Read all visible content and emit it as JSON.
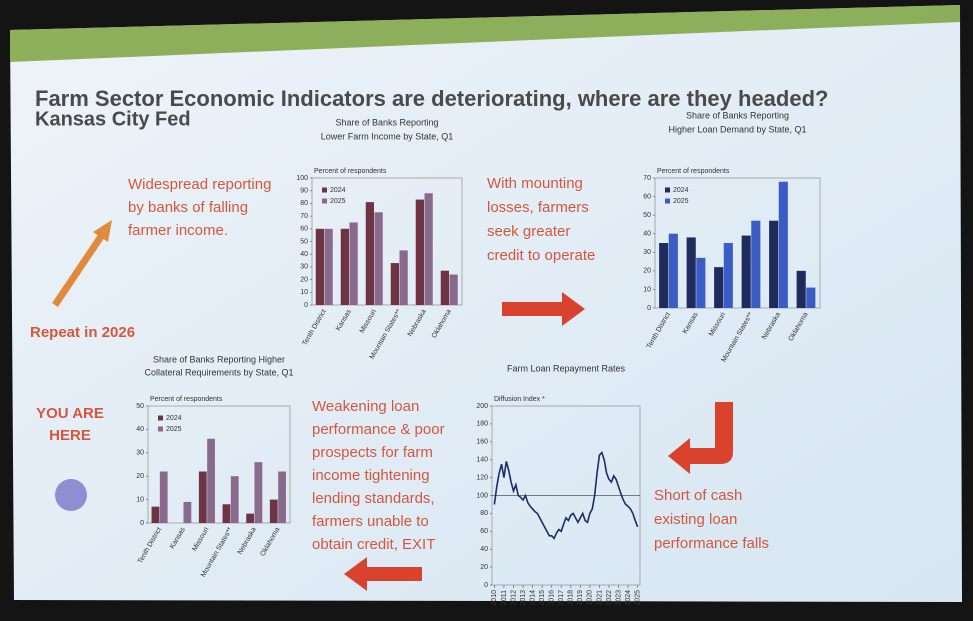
{
  "slide": {
    "title": "Farm Sector Economic Indicators are deteriorating, where are they headed?",
    "subtitle": "Kansas City Fed",
    "annotations": [
      {
        "lines": [
          "Widespread reporting",
          "by banks of falling",
          "farmer income."
        ]
      },
      {
        "lines": [
          "Repeat in 2026"
        ]
      },
      {
        "lines": [
          "With mounting",
          "losses, farmers",
          "seek greater",
          "credit to operate"
        ]
      },
      {
        "lines": [
          "YOU ARE",
          "HERE"
        ]
      },
      {
        "lines": [
          "Weakening loan",
          "performance & poor",
          "prospects for farm",
          "income tightening",
          "lending standards,",
          "farmers unable to",
          "obtain credit, EXIT"
        ]
      },
      {
        "lines": [
          "Short of cash",
          "existing loan",
          "performance falls"
        ]
      }
    ]
  },
  "chart_data": [
    {
      "type": "bar",
      "title": [
        "Share of Banks Reporting",
        "Lower Farm Income by State, Q1"
      ],
      "y_label": "Percent of respondents",
      "categories": [
        "Tenth District",
        "Kansas",
        "Missouri",
        "Mountain States**",
        "Nebraska",
        "Oklahoma"
      ],
      "series": [
        {
          "name": "2024",
          "color": "#6e3444",
          "values": [
            60,
            60,
            81,
            33,
            83,
            27
          ]
        },
        {
          "name": "2025",
          "color": "#8a6a8c",
          "values": [
            60,
            65,
            73,
            43,
            88,
            24
          ]
        }
      ],
      "ylim": [
        0,
        100
      ],
      "yticks": [
        0,
        10,
        20,
        30,
        40,
        50,
        60,
        70,
        80,
        90,
        100
      ],
      "legend": "upper left"
    },
    {
      "type": "bar",
      "title": [
        "Share of Banks Reporting",
        "Higher Loan Demand by State, Q1"
      ],
      "y_label": "Percent of respondents",
      "categories": [
        "Tenth District",
        "Kansas",
        "Missouri",
        "Mountain States**",
        "Nebraska",
        "Oklahoma"
      ],
      "series": [
        {
          "name": "2024",
          "color": "#1f2b5c",
          "values": [
            35,
            38,
            22,
            39,
            47,
            20
          ]
        },
        {
          "name": "2025",
          "color": "#3a5cc4",
          "values": [
            40,
            27,
            35,
            47,
            68,
            11
          ]
        }
      ],
      "ylim": [
        0,
        70
      ],
      "yticks": [
        0,
        10,
        20,
        30,
        40,
        50,
        60,
        70
      ],
      "legend": "upper left"
    },
    {
      "type": "bar",
      "title": [
        "Share of Banks Reporting Higher",
        "Collateral Requirements by State, Q1"
      ],
      "y_label": "Percent of respondents",
      "categories": [
        "Tenth District",
        "Kansas",
        "Missouri",
        "Mountain States**",
        "Nebraska",
        "Oklahoma"
      ],
      "series": [
        {
          "name": "2024",
          "color": "#6e3444",
          "values": [
            7,
            0,
            22,
            8,
            4,
            10
          ]
        },
        {
          "name": "2025",
          "color": "#8a6a8c",
          "values": [
            22,
            9,
            36,
            20,
            26,
            22
          ]
        }
      ],
      "ylim": [
        0,
        50
      ],
      "yticks": [
        0,
        10,
        20,
        30,
        40,
        50
      ],
      "legend": "upper left"
    },
    {
      "type": "line",
      "title": [
        "Farm Loan Repayment Rates"
      ],
      "y_label": "Diffusion Index *",
      "x": [
        2010,
        2010.25,
        2010.5,
        2010.75,
        2011,
        2011.25,
        2011.5,
        2011.75,
        2012,
        2012.25,
        2012.5,
        2012.75,
        2013,
        2013.25,
        2013.5,
        2013.75,
        2014,
        2014.25,
        2014.5,
        2014.75,
        2015,
        2015.25,
        2015.5,
        2015.75,
        2016,
        2016.25,
        2016.5,
        2016.75,
        2017,
        2017.25,
        2017.5,
        2017.75,
        2018,
        2018.25,
        2018.5,
        2018.75,
        2019,
        2019.25,
        2019.5,
        2019.75,
        2020,
        2020.25,
        2020.5,
        2020.75,
        2021,
        2021.25,
        2021.5,
        2021.75,
        2022,
        2022.25,
        2022.5,
        2022.75,
        2023,
        2023.25,
        2023.5,
        2023.75,
        2024,
        2024.25,
        2024.5,
        2024.75,
        2025
      ],
      "values": [
        90,
        110,
        125,
        135,
        120,
        138,
        128,
        115,
        105,
        112,
        100,
        98,
        95,
        100,
        92,
        88,
        85,
        82,
        80,
        75,
        70,
        65,
        60,
        55,
        55,
        52,
        58,
        62,
        60,
        68,
        75,
        72,
        78,
        80,
        75,
        70,
        75,
        80,
        72,
        70,
        80,
        85,
        100,
        125,
        145,
        148,
        140,
        125,
        118,
        115,
        122,
        118,
        110,
        102,
        95,
        90,
        88,
        85,
        80,
        72,
        65
      ],
      "color": "#1f2b6a",
      "hline": 100,
      "xlim": [
        2009.75,
        2025.25
      ],
      "xticks": [
        2010,
        2011,
        2012,
        2013,
        2014,
        2015,
        2016,
        2017,
        2018,
        2019,
        2020,
        2021,
        2022,
        2023,
        2024,
        2025
      ],
      "ylim": [
        0,
        200
      ],
      "yticks": [
        0,
        20,
        40,
        60,
        80,
        100,
        120,
        140,
        160,
        180,
        200
      ]
    }
  ]
}
